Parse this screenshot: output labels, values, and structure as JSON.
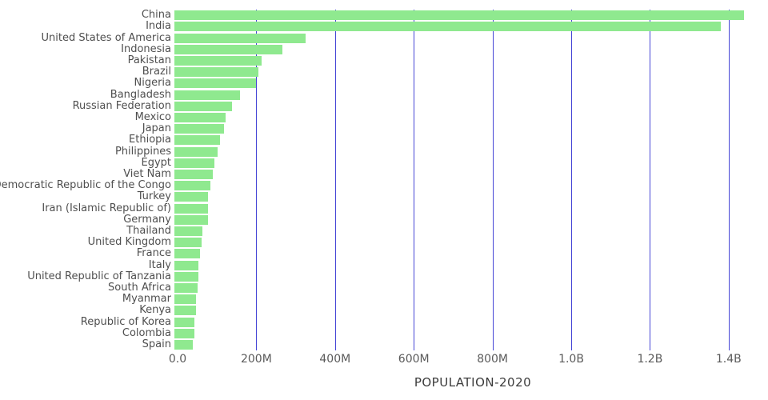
{
  "chart_data": {
    "type": "bar",
    "orientation": "horizontal",
    "title": "",
    "xlabel": "POPULATION-2020",
    "ylabel": "",
    "unit": "people",
    "grid": true,
    "legend": "none",
    "bar_color": "#8fe98f",
    "gridline_color": "#4545d6",
    "xlim": [
      0,
      1500000000
    ],
    "x_ticks": [
      {
        "value": 0,
        "label": "0.0"
      },
      {
        "value": 200000000,
        "label": "200M"
      },
      {
        "value": 400000000,
        "label": "400M"
      },
      {
        "value": 600000000,
        "label": "600M"
      },
      {
        "value": 800000000,
        "label": "800M"
      },
      {
        "value": 1000000000,
        "label": "1.0B"
      },
      {
        "value": 1200000000,
        "label": "1.2B"
      },
      {
        "value": 1400000000,
        "label": "1.4B"
      }
    ],
    "categories": [
      "China",
      "India",
      "United States of America",
      "Indonesia",
      "Pakistan",
      "Brazil",
      "Nigeria",
      "Bangladesh",
      "Russian Federation",
      "Mexico",
      "Japan",
      "Ethiopia",
      "Philippines",
      "Egypt",
      "Viet Nam",
      "Democratic Republic of the Congo",
      "Turkey",
      "Iran (Islamic Republic of)",
      "Germany",
      "Thailand",
      "United Kingdom",
      "France",
      "Italy",
      "United Republic of Tanzania",
      "South Africa",
      "Myanmar",
      "Kenya",
      "Republic of Korea",
      "Colombia",
      "Spain"
    ],
    "values": [
      1440000000,
      1380000000,
      331000000,
      273000000,
      221000000,
      212000000,
      206000000,
      165000000,
      146000000,
      129000000,
      126000000,
      115000000,
      110000000,
      102000000,
      97000000,
      90000000,
      84000000,
      84000000,
      84000000,
      70000000,
      68000000,
      65000000,
      60000000,
      60000000,
      59000000,
      54000000,
      54000000,
      51000000,
      51000000,
      47000000
    ]
  }
}
